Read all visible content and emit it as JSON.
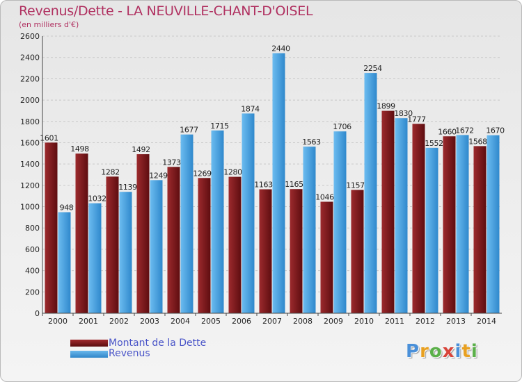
{
  "header": {
    "title": "Revenus/Dette - LA NEUVILLE-CHANT-D'OISEL",
    "unit_label": "(en milliers d'€)"
  },
  "chart_data": {
    "type": "bar",
    "categories": [
      "2000",
      "2001",
      "2002",
      "2003",
      "2004",
      "2005",
      "2006",
      "2007",
      "2008",
      "2009",
      "2010",
      "2011",
      "2012",
      "2013",
      "2014"
    ],
    "series": [
      {
        "name": "Montant de la Dette",
        "color": "#7a1518",
        "values": [
          1601,
          1498,
          1282,
          1492,
          1373,
          1269,
          1280,
          1163,
          1165,
          1046,
          1157,
          1899,
          1777,
          1660,
          1568
        ]
      },
      {
        "name": "Revenus",
        "color": "#4aa3e0",
        "values": [
          948,
          1032,
          1139,
          1249,
          1677,
          1715,
          1874,
          2440,
          1563,
          1706,
          2254,
          1830,
          1552,
          1672,
          1670
        ]
      }
    ],
    "ylim": [
      0,
      2600
    ],
    "yticks": [
      0,
      200,
      400,
      600,
      800,
      1000,
      1200,
      1400,
      1600,
      1800,
      2000,
      2200,
      2400,
      2600
    ],
    "grid": true,
    "legend_position": "bottom-left"
  },
  "legend": {
    "items": [
      {
        "label": "Montant de la Dette",
        "color": "#7a1518"
      },
      {
        "label": "Revenus",
        "color": "#4aa3e0"
      }
    ]
  },
  "logo": {
    "text": "Proxiti"
  }
}
